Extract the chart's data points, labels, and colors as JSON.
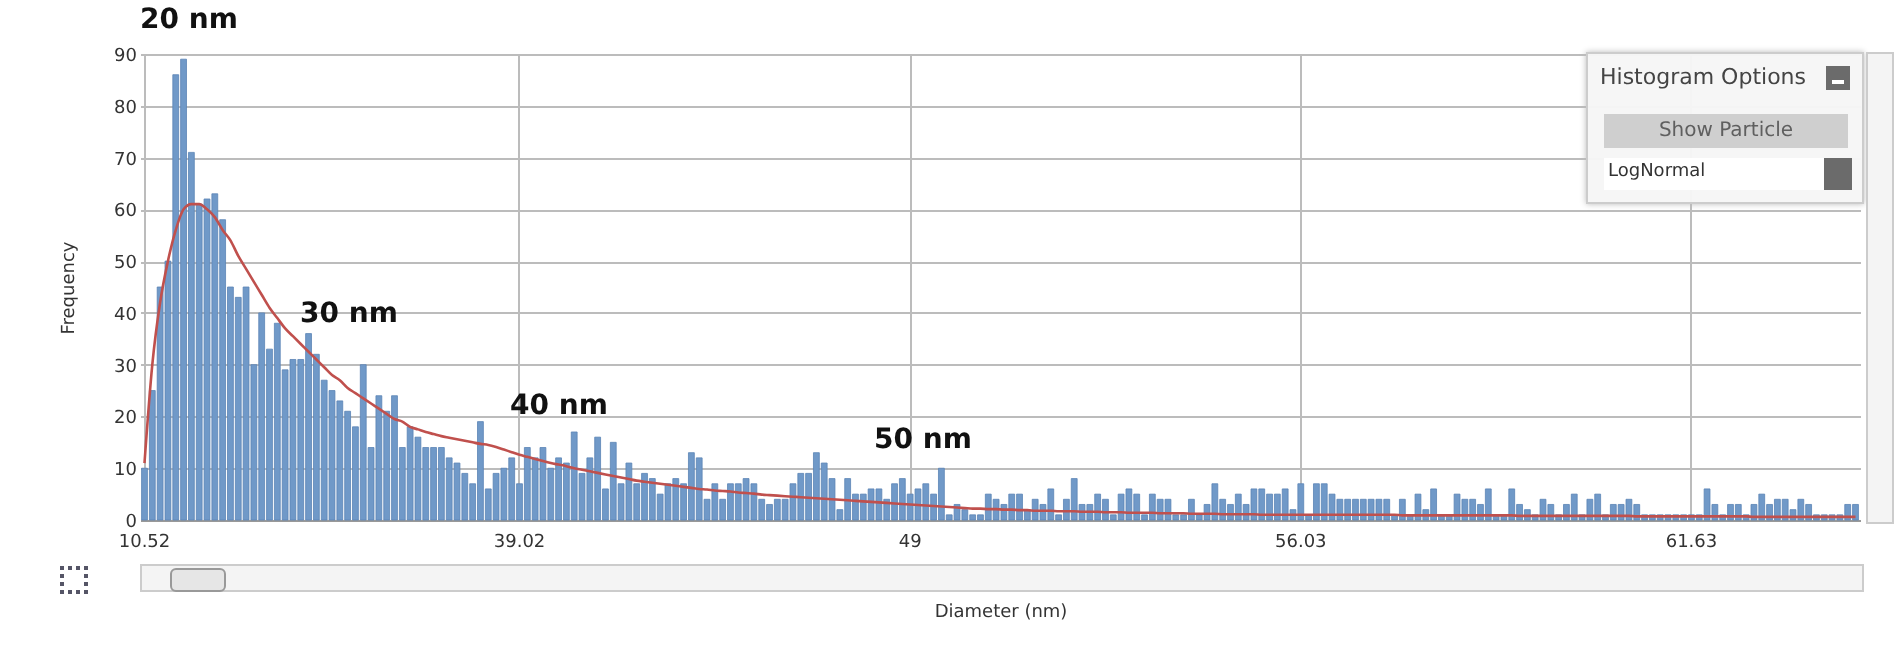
{
  "chart_data": {
    "type": "bar",
    "xlabel": "Diameter (nm)",
    "ylabel": "Frequency",
    "categories": [
      "10.52",
      null,
      null,
      null,
      null,
      null,
      null,
      null,
      null,
      null,
      null,
      null,
      null,
      null,
      null,
      null,
      null,
      null,
      null,
      null,
      null,
      null,
      null,
      null,
      null,
      null,
      null,
      null,
      null,
      null,
      null,
      null,
      null,
      null,
      null,
      null,
      null,
      null,
      null,
      null,
      null,
      null,
      null,
      null,
      null,
      null,
      null,
      null,
      "39.02",
      null,
      null,
      null,
      null,
      null,
      null,
      null,
      null,
      null,
      null,
      null,
      null,
      null,
      null,
      null,
      null,
      null,
      null,
      null,
      null,
      null,
      null,
      null,
      null,
      null,
      null,
      null,
      null,
      null,
      null,
      null,
      null,
      null,
      null,
      null,
      null,
      null,
      null,
      null,
      null,
      null,
      null,
      null,
      null,
      null,
      null,
      null,
      null,
      null,
      "49",
      null,
      null,
      null,
      null,
      null,
      null,
      null,
      null,
      null,
      null,
      null,
      null,
      null,
      null,
      null,
      null,
      null,
      null,
      null,
      null,
      null,
      null,
      null,
      null,
      null,
      null,
      null,
      null,
      null,
      null,
      null,
      null,
      null,
      null,
      null,
      null,
      null,
      null,
      null,
      null,
      null,
      null,
      null,
      null,
      null,
      null,
      null,
      null,
      null,
      "56.03",
      null,
      null,
      null,
      null,
      null,
      null,
      null,
      null,
      null,
      null,
      null,
      null,
      null,
      null,
      null,
      null,
      null,
      null,
      null,
      null,
      null,
      null,
      null,
      null,
      null,
      null,
      null,
      null,
      null,
      null,
      null,
      null,
      null,
      null,
      null,
      null,
      null,
      null,
      null,
      null,
      null,
      null,
      null,
      null,
      null,
      null,
      null,
      null,
      null,
      "61.63",
      null,
      null,
      null,
      null,
      null,
      null,
      null,
      null,
      null,
      null,
      null,
      null,
      null,
      null,
      null,
      null,
      null,
      null,
      null,
      null,
      null
    ],
    "series": [
      {
        "type": "bar",
        "color": "#7099c8",
        "values": [
          10,
          25,
          45,
          50,
          86,
          89,
          71,
          61,
          62,
          63,
          58,
          45,
          43,
          45,
          30,
          40,
          33,
          38,
          29,
          31,
          31,
          36,
          32,
          27,
          25,
          23,
          21,
          18,
          30,
          14,
          24,
          21,
          24,
          14,
          18,
          16,
          14,
          14,
          14,
          12,
          11,
          9,
          7,
          19,
          6,
          9,
          10,
          12,
          7,
          14,
          12,
          14,
          10,
          12,
          11,
          17,
          9,
          12,
          16,
          6,
          15,
          7,
          11,
          7,
          9,
          8,
          5,
          7,
          8,
          7,
          13,
          12,
          4,
          7,
          4,
          7,
          7,
          8,
          7,
          4,
          3,
          4,
          4,
          7,
          9,
          9,
          13,
          11,
          8,
          2,
          8,
          5,
          5,
          6,
          6,
          4,
          7,
          8,
          5,
          6,
          7,
          5,
          10,
          1,
          3,
          2,
          1,
          1,
          5,
          4,
          3,
          5,
          5,
          2,
          4,
          3,
          6,
          1,
          4,
          8,
          3,
          3,
          5,
          4,
          1,
          5,
          6,
          5,
          1,
          5,
          4,
          4,
          1,
          1,
          4,
          1,
          3,
          7,
          4,
          3,
          5,
          3,
          6,
          6,
          5,
          5,
          6,
          2,
          7,
          1,
          7,
          7,
          5,
          4,
          4,
          4,
          4,
          4,
          4,
          4,
          1,
          4,
          1,
          5,
          2,
          6,
          1,
          1,
          5,
          4,
          4,
          3,
          6,
          1,
          1,
          6,
          3,
          2,
          1,
          4,
          3,
          1,
          3,
          5,
          1,
          4,
          5,
          1,
          3,
          3,
          4,
          3,
          1,
          1,
          1,
          1,
          1,
          1,
          1,
          1,
          6,
          3,
          1,
          3,
          3,
          1,
          3,
          5,
          3,
          4,
          4,
          2,
          4,
          3,
          1,
          1,
          1,
          1,
          3,
          3
        ]
      },
      {
        "type": "line",
        "color": "#c0504d",
        "values": [
          11,
          30,
          42,
          50,
          56,
          60,
          61,
          61,
          60,
          58.5,
          56,
          54,
          51,
          48.5,
          46,
          43.5,
          41,
          39,
          37,
          35.5,
          34,
          32.5,
          31,
          29.5,
          28,
          27,
          25.5,
          24.5,
          23.5,
          22.5,
          21.5,
          20.5,
          19.5,
          19,
          18,
          17.5,
          17,
          16.6,
          16.2,
          15.9,
          15.6,
          15.3,
          15,
          14.7,
          14.5,
          14.1,
          13.6,
          13.1,
          12.6,
          12.2,
          11.8,
          11.4,
          11,
          10.7,
          10.4,
          10,
          9.7,
          9.4,
          9.1,
          8.8,
          8.5,
          8.2,
          7.9,
          7.6,
          7.4,
          7.2,
          7,
          6.8,
          6.6,
          6.4,
          6.2,
          6,
          5.9,
          5.7,
          5.6,
          5.5,
          5.3,
          5.2,
          5.1,
          4.9,
          4.8,
          4.7,
          4.6,
          4.5,
          4.4,
          4.3,
          4.2,
          4.1,
          4,
          3.9,
          3.8,
          3.7,
          3.6,
          3.5,
          3.4,
          3.3,
          3.2,
          3.1,
          3,
          2.9,
          2.8,
          2.7,
          2.6,
          2.5,
          2.4,
          2.3,
          2.2,
          2.2,
          2.1,
          2.1,
          2,
          2,
          1.9,
          1.9,
          1.8,
          1.8,
          1.8,
          1.7,
          1.7,
          1.7,
          1.6,
          1.6,
          1.6,
          1.5,
          1.5,
          1.5,
          1.4,
          1.4,
          1.4,
          1.4,
          1.3,
          1.3,
          1.3,
          1.3,
          1.2,
          1.2,
          1.2,
          1.2,
          1.1,
          1.1,
          1.1,
          1.1,
          1.1,
          1,
          1,
          1,
          1,
          1,
          1,
          1,
          1,
          1,
          1,
          1,
          1,
          1,
          1,
          1,
          1,
          1,
          1,
          0.9,
          0.9,
          0.9,
          0.9,
          0.9,
          0.9,
          0.9,
          0.9,
          0.9,
          0.9,
          0.9,
          0.9,
          0.9,
          0.9,
          0.9,
          0.8,
          0.8,
          0.8,
          0.8,
          0.8,
          0.8,
          0.8,
          0.8,
          0.8,
          0.8,
          0.8,
          0.8,
          0.8,
          0.8,
          0.8,
          0.7,
          0.7,
          0.7,
          0.7,
          0.7,
          0.7,
          0.7,
          0.7,
          0.7,
          0.7,
          0.7,
          0.7,
          0.7,
          0.7,
          0.7,
          0.6,
          0.6,
          0.6,
          0.6,
          0.6,
          0.6,
          0.6,
          0.6,
          0.6,
          0.6,
          0.6,
          0.6,
          0.6,
          0.6
        ]
      }
    ],
    "ylim": [
      0,
      90
    ],
    "yticks": [
      0,
      10,
      20,
      30,
      40,
      50,
      60,
      70,
      80,
      90
    ],
    "grid": true,
    "annotations": [
      "20 nm",
      "30 nm",
      "40 nm",
      "50 nm",
      "Histogram Options",
      "Show Particle",
      "LogNormal"
    ]
  }
}
